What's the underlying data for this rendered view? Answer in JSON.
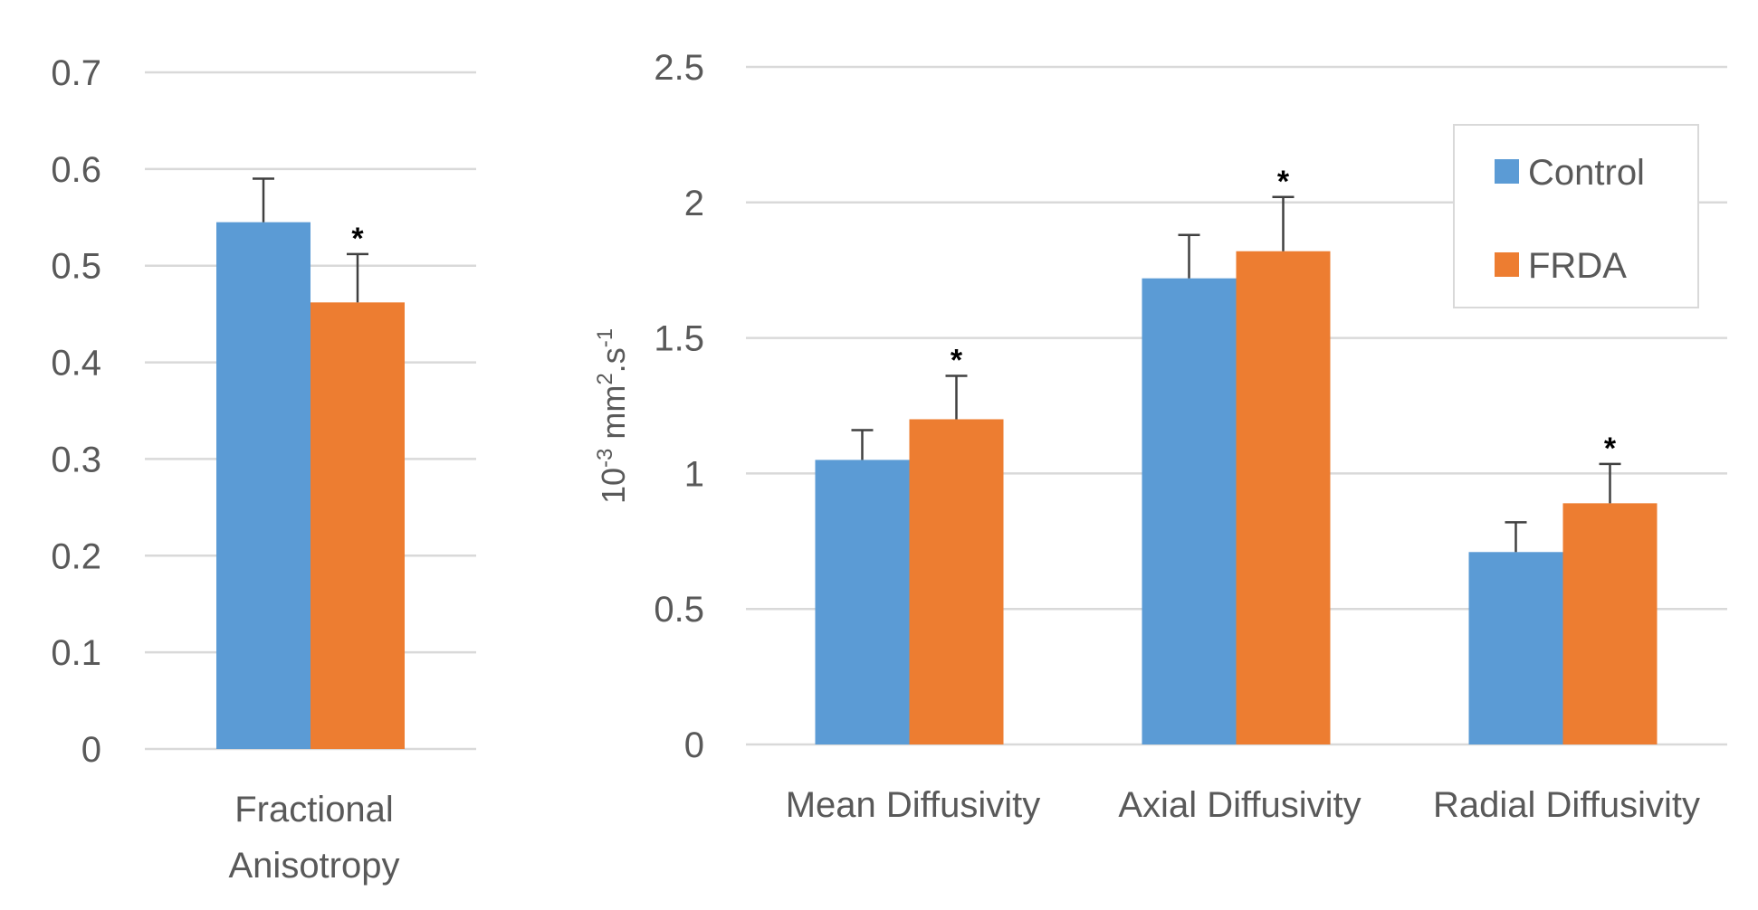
{
  "colors": {
    "control": "#5B9BD5",
    "frda": "#ED7D31",
    "grid": "#D9D9D9",
    "text": "#595959",
    "error": "#404040"
  },
  "chart_data": [
    {
      "type": "bar",
      "title": "",
      "categories": [
        "Fractional Anisotropy"
      ],
      "category_lines": [
        [
          "Fractional",
          "Anisotropy"
        ]
      ],
      "series": [
        {
          "name": "Control",
          "values": [
            0.545
          ],
          "errors": [
            0.045
          ],
          "significant": [
            false
          ]
        },
        {
          "name": "FRDA",
          "values": [
            0.462
          ],
          "errors": [
            0.05
          ],
          "significant": [
            true
          ]
        }
      ],
      "ylim": [
        0,
        0.7
      ],
      "yticks": [
        "0",
        "0.1",
        "0.2",
        "0.3",
        "0.4",
        "0.5",
        "0.6",
        "0.7"
      ],
      "ytick_values": [
        0,
        0.1,
        0.2,
        0.3,
        0.4,
        0.5,
        0.6,
        0.7
      ],
      "xlabel": "",
      "ylabel": "",
      "grid": true
    },
    {
      "type": "bar",
      "title": "",
      "categories": [
        "Mean Diffusivity",
        "Axial Diffusivity",
        "Radial Diffusivity"
      ],
      "series": [
        {
          "name": "Control",
          "values": [
            1.05,
            1.72,
            0.71
          ],
          "errors": [
            0.11,
            0.16,
            0.11
          ],
          "significant": [
            false,
            false,
            false
          ]
        },
        {
          "name": "FRDA",
          "values": [
            1.2,
            1.82,
            0.89
          ],
          "errors": [
            0.16,
            0.2,
            0.145
          ],
          "significant": [
            true,
            true,
            true
          ]
        }
      ],
      "ylim": [
        0,
        2.5
      ],
      "yticks": [
        "0",
        "0.5",
        "1",
        "1.5",
        "2",
        "2.5"
      ],
      "ytick_values": [
        0,
        0.5,
        1,
        1.5,
        2,
        2.5
      ],
      "xlabel": "",
      "ylabel": {
        "base": "10",
        "exp1": "-3",
        "unit": " mm",
        "exp2": "2",
        "mid": ".s",
        "exp3": "-1"
      },
      "legend": {
        "placement": "top-right",
        "entries": [
          "Control",
          "FRDA"
        ]
      },
      "grid": true
    }
  ],
  "significance_marker": "*"
}
